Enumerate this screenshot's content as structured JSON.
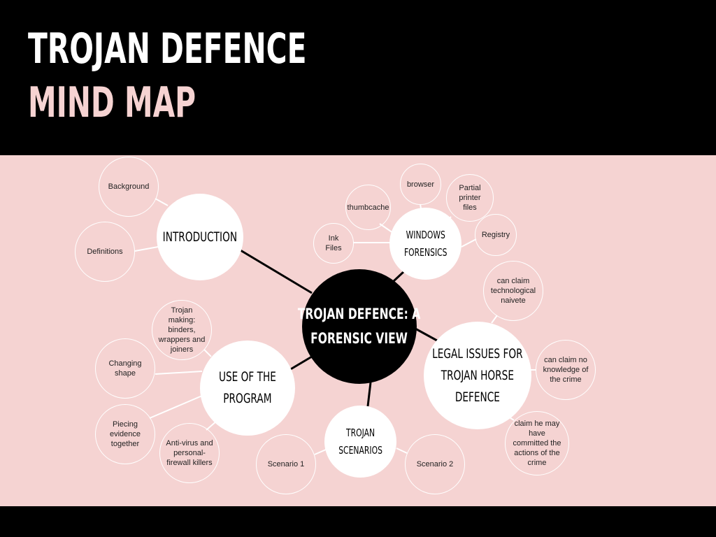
{
  "title": {
    "line1": "TROJAN DEFENCE",
    "line2": "MIND MAP"
  },
  "colors": {
    "header_bg": "#000000",
    "title_white": "#ffffff",
    "title_pink": "#f6d3d2",
    "canvas_bg": "#f5d3d2",
    "center_fill": "#000000",
    "topic_fill": "#ffffff",
    "connector": "#000000"
  },
  "mindmap": {
    "center": {
      "line1": "TROJAN DEFENCE: A",
      "line2": "FORENSIC VIEW"
    },
    "topics": {
      "introduction": {
        "line1": "INTRODUCTION",
        "leaves": [
          "Background",
          "Definitions"
        ]
      },
      "windows_forensics": {
        "line1": "WINDOWS",
        "line2": "FORENSICS",
        "leaves": [
          "browser",
          "Partial\nprinter\nfiles",
          "thumbcache",
          "Ink\nFiles",
          "Registry"
        ]
      },
      "legal_issues": {
        "line1": "LEGAL ISSUES FOR",
        "line2": "TROJAN HORSE",
        "line3": "DEFENCE",
        "leaves": [
          "can claim\ntechnological\nnaivete",
          "can claim  no\nknowledge of\nthe crime",
          "claim he may\nhave\ncommitted the\nactions of the\ncrime"
        ]
      },
      "use_of_program": {
        "line1": "USE OF THE",
        "line2": "PROGRAM",
        "leaves": [
          "Trojan making:\nbinders,\nwrappers and\njoiners",
          "Changing\nshape",
          "Piecing\nevidence\ntogether",
          "Anti-virus and\npersonal-\nfirewall killers"
        ]
      },
      "trojan_scenarios": {
        "line1": "TROJAN",
        "line2": "SCENARIOS",
        "leaves": [
          "Scenario 1",
          "Scenario 2"
        ]
      }
    }
  }
}
